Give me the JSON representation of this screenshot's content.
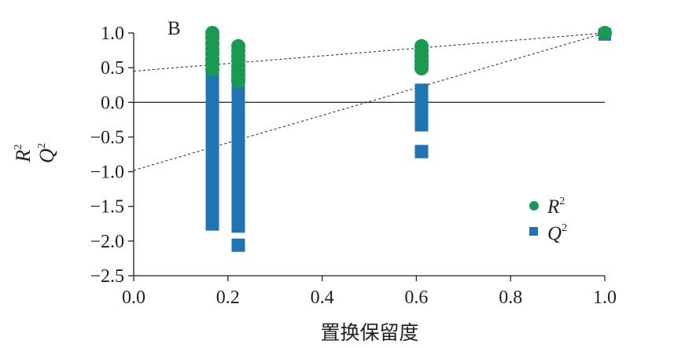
{
  "chart_data": {
    "type": "scatter",
    "panel_label": "B",
    "xlabel": "置换保留度",
    "ylabel_lines": [
      {
        "base": "R",
        "sup": "2"
      },
      {
        "base": "Q",
        "sup": "2"
      }
    ],
    "xlim": [
      0.0,
      1.0
    ],
    "ylim": [
      -2.5,
      1.0
    ],
    "xticks": [
      "0.0",
      "0.2",
      "0.4",
      "0.6",
      "0.8",
      "1.0"
    ],
    "yticks": [
      "1.0",
      "0.5",
      "0.0",
      "−0.5",
      "−1.0",
      "−1.5",
      "−2.0",
      "−2.5"
    ],
    "zero_line": true,
    "grid": false,
    "legend_position": "bottom-right",
    "colors": {
      "r2": "#1a9a50",
      "q2": "#1f74b4",
      "axis": "#231f20"
    },
    "series": [
      {
        "name": "R",
        "name_sup": "2",
        "marker": "circle",
        "color": "#1a9a50",
        "x": [
          0.167,
          0.167,
          0.167,
          0.167,
          0.167,
          0.167,
          0.167,
          0.167,
          0.222,
          0.222,
          0.222,
          0.222,
          0.222,
          0.222,
          0.222,
          0.222,
          0.222,
          0.611,
          0.611,
          0.611,
          0.611,
          0.611,
          0.611,
          1.0
        ],
        "y": [
          1.0,
          0.93,
          0.85,
          0.77,
          0.7,
          0.62,
          0.55,
          0.47,
          0.81,
          0.74,
          0.67,
          0.6,
          0.53,
          0.46,
          0.4,
          0.34,
          0.3,
          0.81,
          0.74,
          0.67,
          0.6,
          0.54,
          0.49,
          1.0
        ]
      },
      {
        "name": "Q",
        "name_sup": "2",
        "marker": "square",
        "color": "#1f74b4",
        "x": [
          1.0
        ],
        "y": [
          0.98
        ],
        "bars": [
          {
            "x": 0.167,
            "y_top": 1.0,
            "y_bottom": -1.85
          },
          {
            "x": 0.222,
            "y_top": 0.25,
            "y_bottom": -1.88
          },
          {
            "x": 0.611,
            "y_top": 0.27,
            "y_bottom": -0.42
          }
        ],
        "isolated_points": [
          {
            "x": 0.222,
            "y": -2.06
          },
          {
            "x": 0.611,
            "y": -0.71
          }
        ]
      }
    ],
    "regression_lines": [
      {
        "series": "R2",
        "intercept": 0.45,
        "endpoint": [
          1.0,
          1.0
        ]
      },
      {
        "series": "Q2",
        "intercept": -0.98,
        "endpoint": [
          1.0,
          1.0
        ]
      }
    ]
  }
}
